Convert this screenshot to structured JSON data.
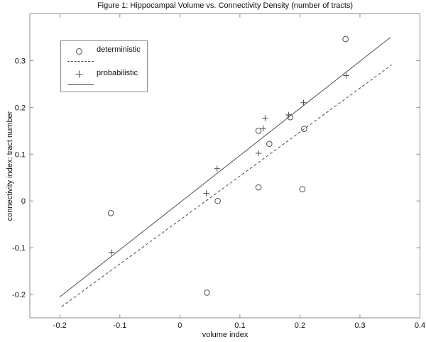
{
  "chart_data": {
    "type": "scatter",
    "title": "Figure 1: Hippocampal Volume vs. Connectivity Density (number of tracts)",
    "xlabel": "volume index",
    "ylabel": "connectivity index: tract number",
    "xlim": [
      -0.25,
      0.4
    ],
    "ylim": [
      -0.25,
      0.4
    ],
    "xticks": [
      -0.2,
      -0.1,
      0,
      0.1,
      0.2,
      0.3,
      0.4
    ],
    "yticks": [
      -0.2,
      -0.1,
      0,
      0.1,
      0.2,
      0.3
    ],
    "grid": false,
    "legend_position": "upper-left",
    "series": [
      {
        "name": "deterministic",
        "marker": "circle",
        "points": [
          [
            -0.115,
            -0.026
          ],
          [
            0.045,
            -0.196
          ],
          [
            0.063,
            0.0
          ],
          [
            0.131,
            0.029
          ],
          [
            0.204,
            0.025
          ],
          [
            0.131,
            0.15
          ],
          [
            0.149,
            0.122
          ],
          [
            0.184,
            0.179
          ],
          [
            0.207,
            0.154
          ],
          [
            0.276,
            0.346
          ]
        ]
      },
      {
        "name": "probabilistic",
        "marker": "plus",
        "points": [
          [
            -0.114,
            -0.11
          ],
          [
            0.044,
            0.016
          ],
          [
            0.062,
            0.069
          ],
          [
            0.131,
            0.102
          ],
          [
            0.142,
            0.177
          ],
          [
            0.139,
            0.155
          ],
          [
            0.181,
            0.184
          ],
          [
            0.206,
            0.21
          ],
          [
            0.277,
            0.268
          ]
        ]
      }
    ],
    "fit_lines": [
      {
        "name": "deterministic-fit",
        "style": "dashed",
        "x1": -0.197,
        "y1": -0.226,
        "x2": 0.353,
        "y2": 0.291
      },
      {
        "name": "probabilistic-fit",
        "style": "solid",
        "x1": -0.2,
        "y1": -0.205,
        "x2": 0.351,
        "y2": 0.35
      }
    ]
  },
  "legend": {
    "entries": [
      {
        "label": "deterministic",
        "symbol": "circle-marker"
      },
      {
        "label": "",
        "symbol": "dashed-line"
      },
      {
        "label": "probabilistic",
        "symbol": "plus-marker"
      },
      {
        "label": "",
        "symbol": "solid-line"
      }
    ]
  },
  "colors": {
    "background": "#ffffff",
    "axis_stroke": "#8c8c8c",
    "data_stroke": "#4d4d4d",
    "text": "#111111"
  }
}
